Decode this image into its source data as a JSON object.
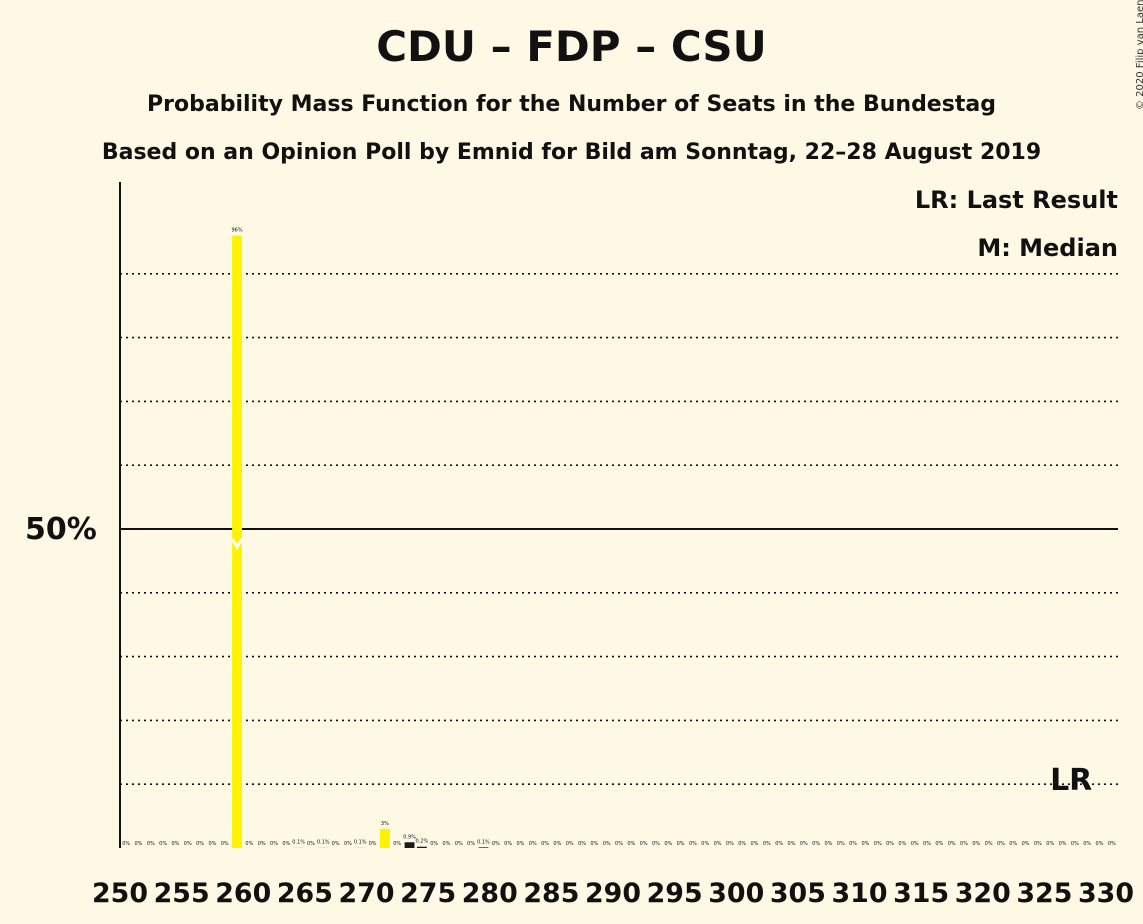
{
  "title": "CDU – FDP – CSU",
  "subtitle1": "Probability Mass Function for the Number of Seats in the Bundestag",
  "subtitle2": "Based on an Opinion Poll by Emnid for Bild am Sonntag, 22–28 August 2019",
  "copyright": "© 2020 Filip van Laenen",
  "legend": {
    "last_result": "LR: Last Result",
    "median": "M: Median"
  },
  "y_axis_label": "50%",
  "lr_marker": "LR",
  "colors": {
    "background": "#FEF9E4",
    "bar": "#FFF200",
    "bar_below_lr": "#1a1a1a",
    "median_marker": "#FFFFFF"
  },
  "chart_data": {
    "type": "bar",
    "x_start": 250,
    "x_end": 330,
    "x_tick_labels": [
      "250",
      "255",
      "260",
      "265",
      "270",
      "275",
      "280",
      "285",
      "290",
      "295",
      "300",
      "305",
      "310",
      "315",
      "320",
      "325",
      "330"
    ],
    "ylim": [
      0,
      100
    ],
    "gridlines": [
      10,
      20,
      30,
      40,
      60,
      70,
      80,
      90
    ],
    "solid_line": 50,
    "median_seat": 259,
    "last_result_seat": 327,
    "values": [
      {
        "seat": 250,
        "value": 0,
        "label": "0%"
      },
      {
        "seat": 251,
        "value": 0,
        "label": "0%"
      },
      {
        "seat": 252,
        "value": 0,
        "label": "0%"
      },
      {
        "seat": 253,
        "value": 0,
        "label": "0%"
      },
      {
        "seat": 254,
        "value": 0,
        "label": "0%"
      },
      {
        "seat": 255,
        "value": 0,
        "label": "0%"
      },
      {
        "seat": 256,
        "value": 0,
        "label": "0%"
      },
      {
        "seat": 257,
        "value": 0,
        "label": "0%"
      },
      {
        "seat": 258,
        "value": 0,
        "label": "0%"
      },
      {
        "seat": 259,
        "value": 96,
        "label": "96%"
      },
      {
        "seat": 260,
        "value": 0,
        "label": "0%"
      },
      {
        "seat": 261,
        "value": 0,
        "label": "0%"
      },
      {
        "seat": 262,
        "value": 0,
        "label": "0%"
      },
      {
        "seat": 263,
        "value": 0,
        "label": "0%"
      },
      {
        "seat": 264,
        "value": 0.1,
        "label": "0.1%"
      },
      {
        "seat": 265,
        "value": 0,
        "label": "0%"
      },
      {
        "seat": 266,
        "value": 0.1,
        "label": "0.1%"
      },
      {
        "seat": 267,
        "value": 0,
        "label": "0%"
      },
      {
        "seat": 268,
        "value": 0,
        "label": "0%"
      },
      {
        "seat": 269,
        "value": 0.1,
        "label": "0.1%"
      },
      {
        "seat": 270,
        "value": 0,
        "label": "0%"
      },
      {
        "seat": 271,
        "value": 3,
        "label": "3%"
      },
      {
        "seat": 272,
        "value": 0,
        "label": "0%"
      },
      {
        "seat": 273,
        "value": 0.9,
        "label": "0.9%"
      },
      {
        "seat": 274,
        "value": 0.2,
        "label": "0.2%"
      },
      {
        "seat": 275,
        "value": 0,
        "label": "0%"
      },
      {
        "seat": 276,
        "value": 0,
        "label": "0%"
      },
      {
        "seat": 277,
        "value": 0,
        "label": "0%"
      },
      {
        "seat": 278,
        "value": 0,
        "label": "0%"
      },
      {
        "seat": 279,
        "value": 0.1,
        "label": "0.1%"
      },
      {
        "seat": 280,
        "value": 0,
        "label": "0%"
      },
      {
        "seat": 281,
        "value": 0,
        "label": "0%"
      },
      {
        "seat": 282,
        "value": 0,
        "label": "0%"
      },
      {
        "seat": 283,
        "value": 0,
        "label": "0%"
      },
      {
        "seat": 284,
        "value": 0,
        "label": "0%"
      },
      {
        "seat": 285,
        "value": 0,
        "label": "0%"
      },
      {
        "seat": 286,
        "value": 0,
        "label": "0%"
      },
      {
        "seat": 287,
        "value": 0,
        "label": "0%"
      },
      {
        "seat": 288,
        "value": 0,
        "label": "0%"
      },
      {
        "seat": 289,
        "value": 0,
        "label": "0%"
      },
      {
        "seat": 290,
        "value": 0,
        "label": "0%"
      },
      {
        "seat": 291,
        "value": 0,
        "label": "0%"
      },
      {
        "seat": 292,
        "value": 0,
        "label": "0%"
      },
      {
        "seat": 293,
        "value": 0,
        "label": "0%"
      },
      {
        "seat": 294,
        "value": 0,
        "label": "0%"
      },
      {
        "seat": 295,
        "value": 0,
        "label": "0%"
      },
      {
        "seat": 296,
        "value": 0,
        "label": "0%"
      },
      {
        "seat": 297,
        "value": 0,
        "label": "0%"
      },
      {
        "seat": 298,
        "value": 0,
        "label": "0%"
      },
      {
        "seat": 299,
        "value": 0,
        "label": "0%"
      },
      {
        "seat": 300,
        "value": 0,
        "label": "0%"
      },
      {
        "seat": 301,
        "value": 0,
        "label": "0%"
      },
      {
        "seat": 302,
        "value": 0,
        "label": "0%"
      },
      {
        "seat": 303,
        "value": 0,
        "label": "0%"
      },
      {
        "seat": 304,
        "value": 0,
        "label": "0%"
      },
      {
        "seat": 305,
        "value": 0,
        "label": "0%"
      },
      {
        "seat": 306,
        "value": 0,
        "label": "0%"
      },
      {
        "seat": 307,
        "value": 0,
        "label": "0%"
      },
      {
        "seat": 308,
        "value": 0,
        "label": "0%"
      },
      {
        "seat": 309,
        "value": 0,
        "label": "0%"
      },
      {
        "seat": 310,
        "value": 0,
        "label": "0%"
      },
      {
        "seat": 311,
        "value": 0,
        "label": "0%"
      },
      {
        "seat": 312,
        "value": 0,
        "label": "0%"
      },
      {
        "seat": 313,
        "value": 0,
        "label": "0%"
      },
      {
        "seat": 314,
        "value": 0,
        "label": "0%"
      },
      {
        "seat": 315,
        "value": 0,
        "label": "0%"
      },
      {
        "seat": 316,
        "value": 0,
        "label": "0%"
      },
      {
        "seat": 317,
        "value": 0,
        "label": "0%"
      },
      {
        "seat": 318,
        "value": 0,
        "label": "0%"
      },
      {
        "seat": 319,
        "value": 0,
        "label": "0%"
      },
      {
        "seat": 320,
        "value": 0,
        "label": "0%"
      },
      {
        "seat": 321,
        "value": 0,
        "label": "0%"
      },
      {
        "seat": 322,
        "value": 0,
        "label": "0%"
      },
      {
        "seat": 323,
        "value": 0,
        "label": "0%"
      },
      {
        "seat": 324,
        "value": 0,
        "label": "0%"
      },
      {
        "seat": 325,
        "value": 0,
        "label": "0%"
      },
      {
        "seat": 326,
        "value": 0,
        "label": "0%"
      },
      {
        "seat": 327,
        "value": 0,
        "label": "0%"
      },
      {
        "seat": 328,
        "value": 0,
        "label": "0%"
      },
      {
        "seat": 329,
        "value": 0,
        "label": "0%"
      },
      {
        "seat": 330,
        "value": 0,
        "label": "0%"
      }
    ]
  }
}
